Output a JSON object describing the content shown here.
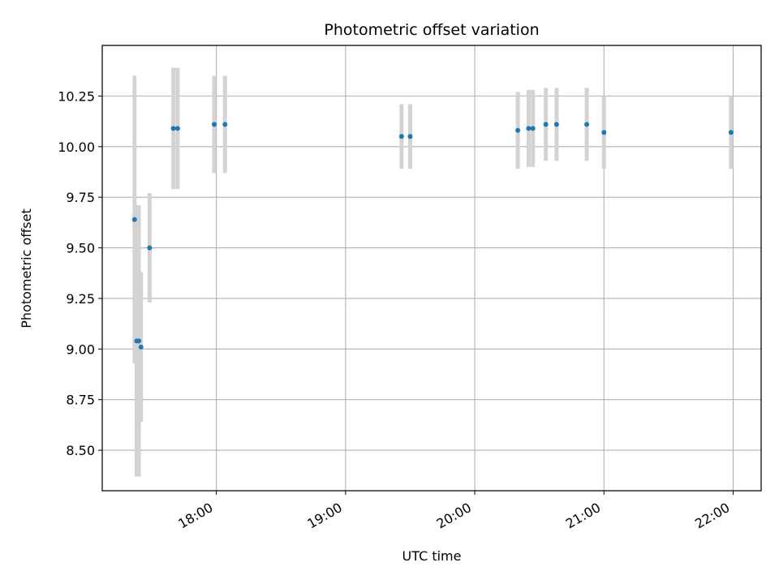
{
  "chart_data": {
    "type": "scatter",
    "title": "Photometric offset variation",
    "xlabel": "UTC time",
    "ylabel": "Photometric offset",
    "x_ticks": [
      "18:00",
      "19:00",
      "20:00",
      "21:00",
      "22:00"
    ],
    "y_ticks": [
      "8.50",
      "8.75",
      "9.00",
      "9.25",
      "9.50",
      "9.75",
      "10.00",
      "10.25"
    ],
    "xlim": [
      "17:07",
      "22:13"
    ],
    "ylim": [
      8.3,
      10.5
    ],
    "grid": true,
    "colors": {
      "point": "#1f77b4",
      "errorbar": "#d3d3d3",
      "grid": "#b0b0b0"
    },
    "series": [
      {
        "x": [
          "17:22",
          "17:23",
          "17:24",
          "17:25",
          "17:29",
          "17:40",
          "17:42",
          "17:59",
          "18:04",
          "19:26",
          "19:30",
          "20:20",
          "20:25",
          "20:27",
          "20:33",
          "20:38",
          "20:52",
          "21:00",
          "21:59"
        ],
        "y": [
          9.64,
          9.04,
          9.04,
          9.01,
          9.5,
          10.09,
          10.09,
          10.11,
          10.11,
          10.05,
          10.05,
          10.08,
          10.09,
          10.09,
          10.11,
          10.11,
          10.11,
          10.07,
          10.07
        ],
        "yerr": [
          0.71,
          0.67,
          0.67,
          0.37,
          0.27,
          0.3,
          0.3,
          0.24,
          0.24,
          0.16,
          0.16,
          0.19,
          0.19,
          0.19,
          0.18,
          0.18,
          0.18,
          0.18,
          0.18
        ]
      }
    ]
  }
}
